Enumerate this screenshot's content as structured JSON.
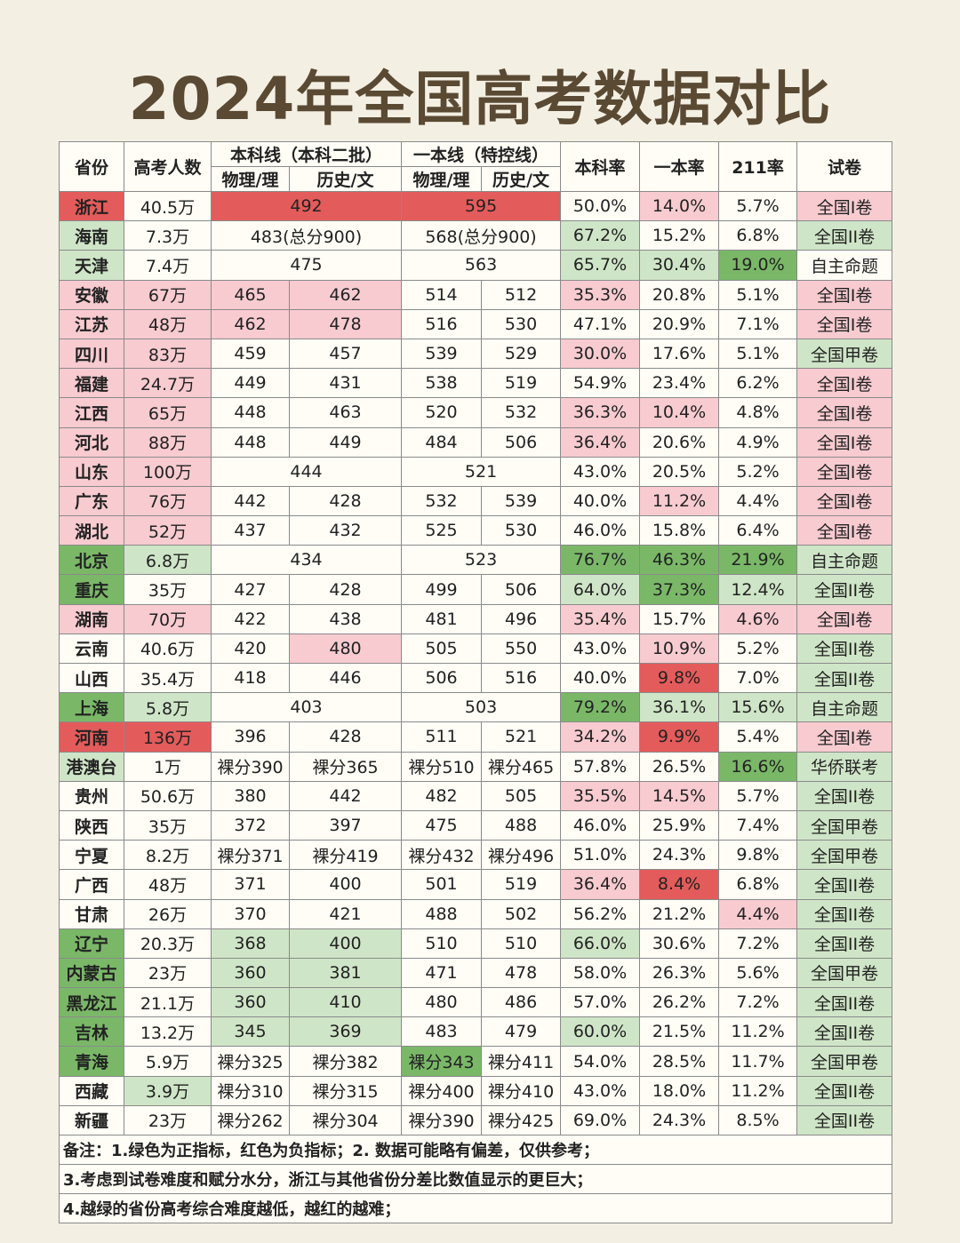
{
  "title": "2024年全国高考数据对比",
  "headers": {
    "province": "省份",
    "examinees": "高考人数",
    "bk_line": "本科线（本科二批）",
    "yb_line": "一本线（特控线）",
    "physics": "物理/理",
    "history": "历史/文",
    "bk_rate": "本科率",
    "yb_rate": "一本率",
    "rate_211": "211率",
    "paper": "试卷"
  },
  "colors": {
    "strong_red": "#e45b5b",
    "light_red": "#f7cbd0",
    "strong_green": "#7ab868",
    "light_green": "#cfe5c7"
  },
  "rows": [
    {
      "province": "浙江",
      "examinees": "40.5万",
      "bk_merged": "492",
      "yb_merged": "595",
      "bk_rate": "50.0%",
      "yb_rate": "14.0%",
      "rate_211": "5.7%",
      "paper": "全国I卷"
    },
    {
      "province": "海南",
      "examinees": "7.3万",
      "bk_merged": "483(总分900)",
      "yb_merged": "568(总分900)",
      "bk_rate": "67.2%",
      "yb_rate": "15.2%",
      "rate_211": "6.8%",
      "paper": "全国II卷"
    },
    {
      "province": "天津",
      "examinees": "7.4万",
      "bk_merged": "475",
      "yb_merged": "563",
      "bk_rate": "65.7%",
      "yb_rate": "30.4%",
      "rate_211": "19.0%",
      "paper": "自主命题"
    },
    {
      "province": "安徽",
      "examinees": "67万",
      "bk_phys": "465",
      "bk_hist": "462",
      "yb_phys": "514",
      "yb_hist": "512",
      "bk_rate": "35.3%",
      "yb_rate": "20.8%",
      "rate_211": "5.1%",
      "paper": "全国I卷"
    },
    {
      "province": "江苏",
      "examinees": "48万",
      "bk_phys": "462",
      "bk_hist": "478",
      "yb_phys": "516",
      "yb_hist": "530",
      "bk_rate": "47.1%",
      "yb_rate": "20.9%",
      "rate_211": "7.1%",
      "paper": "全国I卷"
    },
    {
      "province": "四川",
      "examinees": "83万",
      "bk_phys": "459",
      "bk_hist": "457",
      "yb_phys": "539",
      "yb_hist": "529",
      "bk_rate": "30.0%",
      "yb_rate": "17.6%",
      "rate_211": "5.1%",
      "paper": "全国甲卷"
    },
    {
      "province": "福建",
      "examinees": "24.7万",
      "bk_phys": "449",
      "bk_hist": "431",
      "yb_phys": "538",
      "yb_hist": "519",
      "bk_rate": "54.9%",
      "yb_rate": "23.4%",
      "rate_211": "6.2%",
      "paper": "全国I卷"
    },
    {
      "province": "江西",
      "examinees": "65万",
      "bk_phys": "448",
      "bk_hist": "463",
      "yb_phys": "520",
      "yb_hist": "532",
      "bk_rate": "36.3%",
      "yb_rate": "10.4%",
      "rate_211": "4.8%",
      "paper": "全国I卷"
    },
    {
      "province": "河北",
      "examinees": "88万",
      "bk_phys": "448",
      "bk_hist": "449",
      "yb_phys": "484",
      "yb_hist": "506",
      "bk_rate": "36.4%",
      "yb_rate": "20.6%",
      "rate_211": "4.9%",
      "paper": "全国I卷"
    },
    {
      "province": "山东",
      "examinees": "100万",
      "bk_merged": "444",
      "yb_merged": "521",
      "bk_rate": "43.0%",
      "yb_rate": "20.5%",
      "rate_211": "5.2%",
      "paper": "全国I卷"
    },
    {
      "province": "广东",
      "examinees": "76万",
      "bk_phys": "442",
      "bk_hist": "428",
      "yb_phys": "532",
      "yb_hist": "539",
      "bk_rate": "40.0%",
      "yb_rate": "11.2%",
      "rate_211": "4.4%",
      "paper": "全国I卷"
    },
    {
      "province": "湖北",
      "examinees": "52万",
      "bk_phys": "437",
      "bk_hist": "432",
      "yb_phys": "525",
      "yb_hist": "530",
      "bk_rate": "46.0%",
      "yb_rate": "15.8%",
      "rate_211": "6.4%",
      "paper": "全国I卷"
    },
    {
      "province": "北京",
      "examinees": "6.8万",
      "bk_merged": "434",
      "yb_merged": "523",
      "bk_rate": "76.7%",
      "yb_rate": "46.3%",
      "rate_211": "21.9%",
      "paper": "自主命题"
    },
    {
      "province": "重庆",
      "examinees": "35万",
      "bk_phys": "427",
      "bk_hist": "428",
      "yb_phys": "499",
      "yb_hist": "506",
      "bk_rate": "64.0%",
      "yb_rate": "37.3%",
      "rate_211": "12.4%",
      "paper": "全国II卷"
    },
    {
      "province": "湖南",
      "examinees": "70万",
      "bk_phys": "422",
      "bk_hist": "438",
      "yb_phys": "481",
      "yb_hist": "496",
      "bk_rate": "35.4%",
      "yb_rate": "15.7%",
      "rate_211": "4.6%",
      "paper": "全国I卷"
    },
    {
      "province": "云南",
      "examinees": "40.6万",
      "bk_phys": "420",
      "bk_hist": "480",
      "yb_phys": "505",
      "yb_hist": "550",
      "bk_rate": "43.0%",
      "yb_rate": "10.9%",
      "rate_211": "5.2%",
      "paper": "全国II卷"
    },
    {
      "province": "山西",
      "examinees": "35.4万",
      "bk_phys": "418",
      "bk_hist": "446",
      "yb_phys": "506",
      "yb_hist": "516",
      "bk_rate": "40.0%",
      "yb_rate": "9.8%",
      "rate_211": "7.0%",
      "paper": "全国II卷"
    },
    {
      "province": "上海",
      "examinees": "5.8万",
      "bk_merged": "403",
      "yb_merged": "503",
      "bk_rate": "79.2%",
      "yb_rate": "36.1%",
      "rate_211": "15.6%",
      "paper": "自主命题"
    },
    {
      "province": "河南",
      "examinees": "136万",
      "bk_phys": "396",
      "bk_hist": "428",
      "yb_phys": "511",
      "yb_hist": "521",
      "bk_rate": "34.2%",
      "yb_rate": "9.9%",
      "rate_211": "5.4%",
      "paper": "全国I卷"
    },
    {
      "province": "港澳台",
      "examinees": "1万",
      "bk_phys": "裸分390",
      "bk_hist": "裸分365",
      "yb_phys": "裸分510",
      "yb_hist": "裸分465",
      "bk_rate": "57.8%",
      "yb_rate": "26.5%",
      "rate_211": "16.6%",
      "paper": "华侨联考"
    },
    {
      "province": "贵州",
      "examinees": "50.6万",
      "bk_phys": "380",
      "bk_hist": "442",
      "yb_phys": "482",
      "yb_hist": "505",
      "bk_rate": "35.5%",
      "yb_rate": "14.5%",
      "rate_211": "5.7%",
      "paper": "全国II卷"
    },
    {
      "province": "陕西",
      "examinees": "35万",
      "bk_phys": "372",
      "bk_hist": "397",
      "yb_phys": "475",
      "yb_hist": "488",
      "bk_rate": "46.0%",
      "yb_rate": "25.9%",
      "rate_211": "7.4%",
      "paper": "全国甲卷"
    },
    {
      "province": "宁夏",
      "examinees": "8.2万",
      "bk_phys": "裸分371",
      "bk_hist": "裸分419",
      "yb_phys": "裸分432",
      "yb_hist": "裸分496",
      "bk_rate": "51.0%",
      "yb_rate": "24.3%",
      "rate_211": "9.8%",
      "paper": "全国甲卷"
    },
    {
      "province": "广西",
      "examinees": "48万",
      "bk_phys": "371",
      "bk_hist": "400",
      "yb_phys": "501",
      "yb_hist": "519",
      "bk_rate": "36.4%",
      "yb_rate": "8.4%",
      "rate_211": "6.8%",
      "paper": "全国II卷"
    },
    {
      "province": "甘肃",
      "examinees": "26万",
      "bk_phys": "370",
      "bk_hist": "421",
      "yb_phys": "488",
      "yb_hist": "502",
      "bk_rate": "56.2%",
      "yb_rate": "21.2%",
      "rate_211": "4.4%",
      "paper": "全国II卷"
    },
    {
      "province": "辽宁",
      "examinees": "20.3万",
      "bk_phys": "368",
      "bk_hist": "400",
      "yb_phys": "510",
      "yb_hist": "510",
      "bk_rate": "66.0%",
      "yb_rate": "30.6%",
      "rate_211": "7.2%",
      "paper": "全国II卷"
    },
    {
      "province": "内蒙古",
      "examinees": "23万",
      "bk_phys": "360",
      "bk_hist": "381",
      "yb_phys": "471",
      "yb_hist": "478",
      "bk_rate": "58.0%",
      "yb_rate": "26.3%",
      "rate_211": "5.6%",
      "paper": "全国甲卷"
    },
    {
      "province": "黑龙江",
      "examinees": "21.1万",
      "bk_phys": "360",
      "bk_hist": "410",
      "yb_phys": "480",
      "yb_hist": "486",
      "bk_rate": "57.0%",
      "yb_rate": "26.2%",
      "rate_211": "7.2%",
      "paper": "全国II卷"
    },
    {
      "province": "吉林",
      "examinees": "13.2万",
      "bk_phys": "345",
      "bk_hist": "369",
      "yb_phys": "483",
      "yb_hist": "479",
      "bk_rate": "60.0%",
      "yb_rate": "21.5%",
      "rate_211": "11.2%",
      "paper": "全国II卷"
    },
    {
      "province": "青海",
      "examinees": "5.9万",
      "bk_phys": "裸分325",
      "bk_hist": "裸分382",
      "yb_phys": "裸分343",
      "yb_hist": "裸分411",
      "bk_rate": "54.0%",
      "yb_rate": "28.5%",
      "rate_211": "11.7%",
      "paper": "全国甲卷"
    },
    {
      "province": "西藏",
      "examinees": "3.9万",
      "bk_phys": "裸分310",
      "bk_hist": "裸分315",
      "yb_phys": "裸分400",
      "yb_hist": "裸分410",
      "bk_rate": "43.0%",
      "yb_rate": "18.0%",
      "rate_211": "11.2%",
      "paper": "全国II卷"
    },
    {
      "province": "新疆",
      "examinees": "23万",
      "bk_phys": "裸分262",
      "bk_hist": "裸分304",
      "yb_phys": "裸分390",
      "yb_hist": "裸分425",
      "bk_rate": "69.0%",
      "yb_rate": "24.3%",
      "rate_211": "8.5%",
      "paper": "全国II卷"
    }
  ],
  "notes": [
    "备注：1.绿色为正指标，红色为负指标；2. 数据可能略有偏差，仅供参考；",
    "3.考虑到试卷难度和赋分水分，浙江与其他省份分差比数值显示的更巨大；",
    "4.越绿的省份高考综合难度越低，越红的越难；"
  ]
}
